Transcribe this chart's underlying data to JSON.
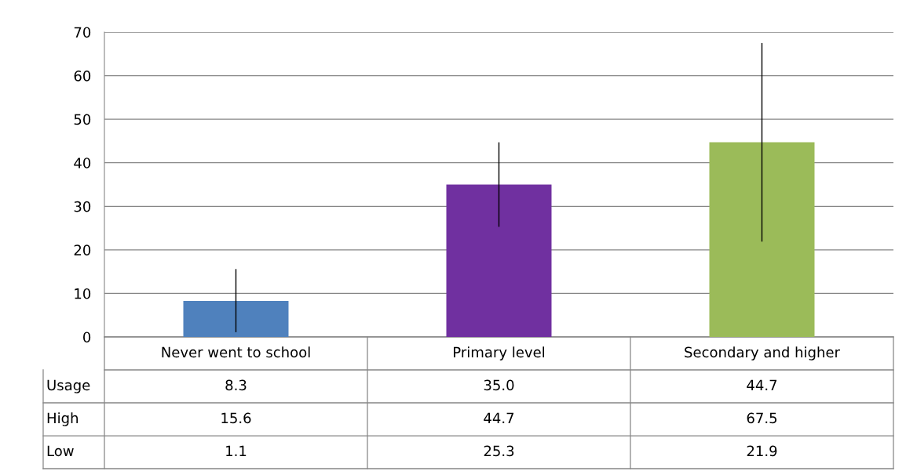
{
  "chart_data": {
    "type": "bar",
    "categories": [
      "Never went to school",
      "Primary level",
      "Secondary and higher"
    ],
    "series": [
      {
        "name": "Usage",
        "values": [
          8.3,
          35.0,
          44.7
        ],
        "colors": [
          "#4f81bd",
          "#7030a0",
          "#9bbb59"
        ],
        "errors": [
          [
            1.1,
            15.6
          ],
          [
            25.3,
            44.7
          ],
          [
            21.9,
            67.5
          ]
        ],
        "value_labels": [
          "8.3",
          "35.0",
          "44.7"
        ]
      }
    ],
    "annotations": [
      "High",
      "15.6",
      "44.7",
      "67.5",
      "Low",
      "1.1",
      "25.3",
      "21.9"
    ],
    "ylim": [
      0,
      70
    ],
    "yticks": [
      0,
      10,
      20,
      30,
      40,
      50,
      60,
      70
    ],
    "grid": "y"
  }
}
